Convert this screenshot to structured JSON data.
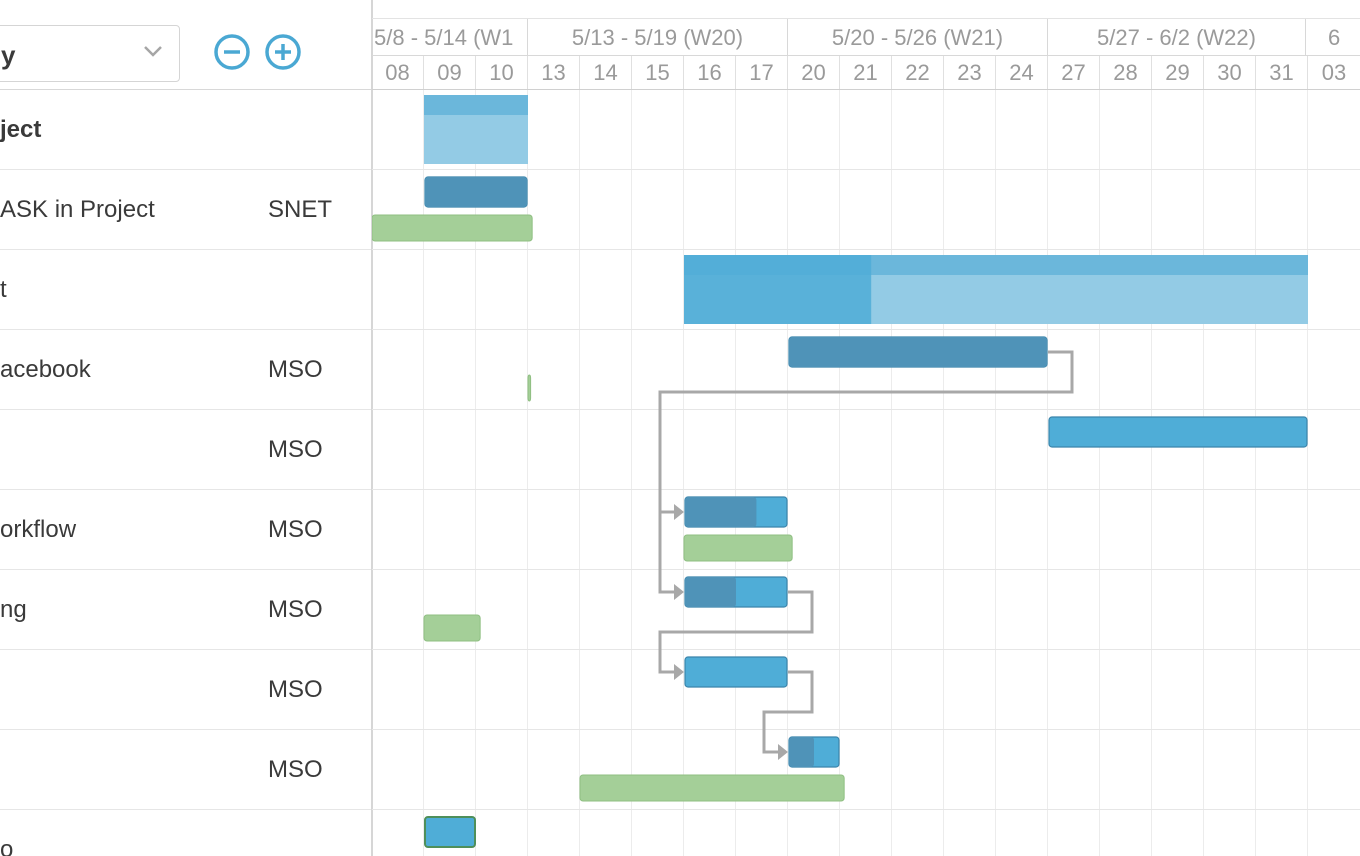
{
  "toolbar": {
    "group_by_value": "y",
    "zoom_out_icon": "minus-circle-icon",
    "zoom_in_icon": "plus-circle-icon",
    "dropdown_icon": "chevron-down-icon"
  },
  "colors": {
    "accent": "#4aa8d3",
    "bar_done": "#4f93b8",
    "bar_todo": "#4fadd7",
    "summary": "#93cbe5",
    "baseline": "#a4cf98",
    "link": "#a8a8a8",
    "grid": "#e6e6e6"
  },
  "timeline": {
    "weeks": [
      "5/8 - 5/14 (W1",
      "5/13 - 5/19 (W20)",
      "5/20 - 5/26 (W21)",
      "5/27 - 6/2 (W22)",
      "6"
    ],
    "days": [
      "08",
      "09",
      "10",
      "13",
      "14",
      "15",
      "16",
      "17",
      "20",
      "21",
      "22",
      "23",
      "24",
      "27",
      "28",
      "29",
      "30",
      "31",
      "03"
    ]
  },
  "tasks": [
    {
      "name": "ject",
      "constraint": "",
      "bold": true
    },
    {
      "name": "ASK in Project",
      "constraint": "SNET",
      "bold": false
    },
    {
      "name": "t",
      "constraint": "",
      "bold": false
    },
    {
      "name": "acebook",
      "constraint": "MSO",
      "bold": false
    },
    {
      "name": "",
      "constraint": "MSO",
      "bold": false
    },
    {
      "name": "orkflow",
      "constraint": "MSO",
      "bold": false
    },
    {
      "name": "ng",
      "constraint": "MSO",
      "bold": false
    },
    {
      "name": "",
      "constraint": "MSO",
      "bold": false
    },
    {
      "name": "",
      "constraint": "MSO",
      "bold": false
    },
    {
      "name": "o",
      "constraint": "",
      "bold": false
    }
  ],
  "bars": [
    {
      "row": 0,
      "kind": "summary",
      "start": 1,
      "end": 3,
      "progress": 0
    },
    {
      "row": 1,
      "kind": "task",
      "start": 1,
      "end": 3,
      "progress": 1.0
    },
    {
      "row": 1,
      "kind": "baseline",
      "start": 0,
      "end": 3.08
    },
    {
      "row": 2,
      "kind": "summary",
      "start": 6,
      "end": 18,
      "progress": 0.3
    },
    {
      "row": 3,
      "kind": "task",
      "start": 8,
      "end": 13,
      "progress": 1.0
    },
    {
      "row": 3,
      "kind": "baseline",
      "start": 3,
      "end": 3.05
    },
    {
      "row": 4,
      "kind": "task",
      "start": 13,
      "end": 18,
      "progress": 0
    },
    {
      "row": 5,
      "kind": "task",
      "start": 6,
      "end": 8,
      "progress": 0.7
    },
    {
      "row": 5,
      "kind": "baseline",
      "start": 6,
      "end": 8.08
    },
    {
      "row": 6,
      "kind": "task",
      "start": 6,
      "end": 8,
      "progress": 0.5
    },
    {
      "row": 6,
      "kind": "baseline",
      "start": 1,
      "end": 2.08
    },
    {
      "row": 7,
      "kind": "task",
      "start": 6,
      "end": 8,
      "progress": 0
    },
    {
      "row": 8,
      "kind": "task",
      "start": 8,
      "end": 9,
      "progress": 0.5
    },
    {
      "row": 8,
      "kind": "baseline",
      "start": 4,
      "end": 9.08
    },
    {
      "row": 9,
      "kind": "task-outline",
      "start": 1,
      "end": 2,
      "progress": 0
    }
  ],
  "links": [
    {
      "from_row": 3,
      "to_row": 5
    },
    {
      "from_row": 3,
      "to_row": 6
    },
    {
      "from_row": 6,
      "to_row": 7
    },
    {
      "from_row": 7,
      "to_row": 8
    }
  ]
}
